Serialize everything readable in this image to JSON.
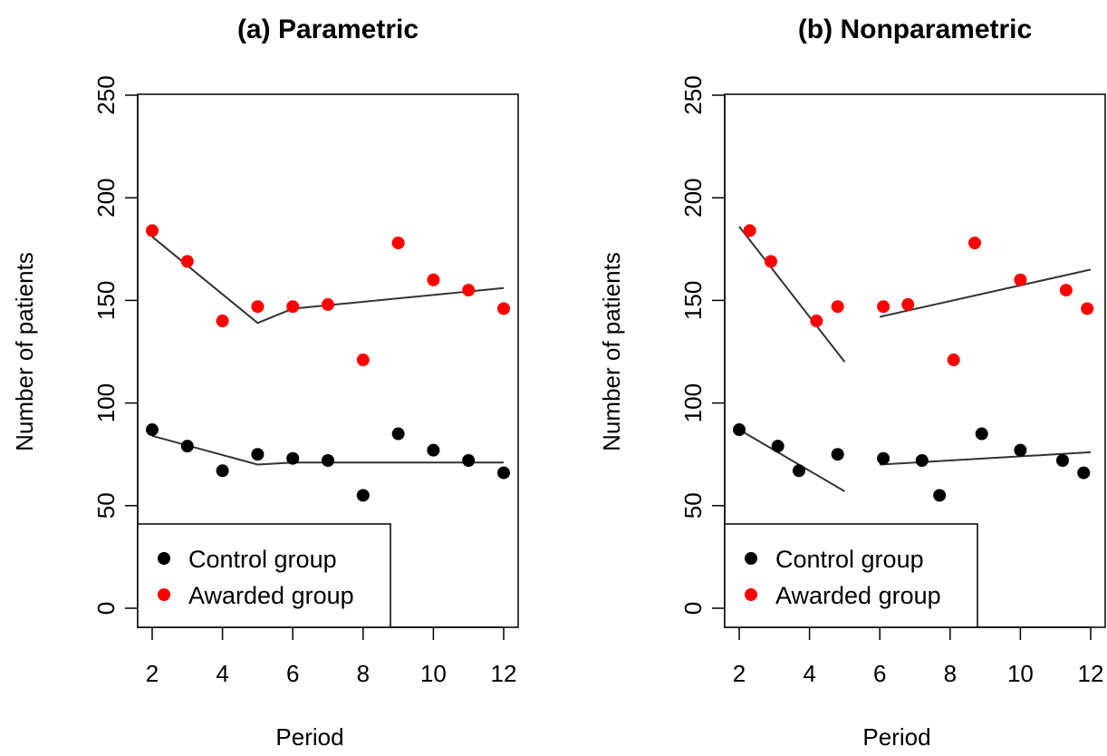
{
  "chart_data": [
    {
      "type": "scatter",
      "title": "(a) Parametric",
      "xlabel": "Period",
      "ylabel": "Number of patients",
      "xlim": [
        1.6,
        12.4
      ],
      "ylim": [
        -10,
        250
      ],
      "x_ticks": [
        2,
        4,
        6,
        8,
        10,
        12
      ],
      "x_tick_labels": [
        "2",
        "4",
        "6",
        "8",
        "10",
        "12"
      ],
      "y_ticks": [
        0,
        50,
        100,
        150,
        200,
        250
      ],
      "y_tick_labels": [
        "0",
        "50",
        "100",
        "150",
        "200",
        "250"
      ],
      "grid": false,
      "legend_position": "bottom-left",
      "legend": [
        "Control group",
        "Awarded group"
      ],
      "series": [
        {
          "name": "Control group",
          "color": "#000000",
          "points": [
            [
              2,
              87
            ],
            [
              3,
              79
            ],
            [
              4,
              67
            ],
            [
              5,
              75
            ],
            [
              6,
              73
            ],
            [
              7,
              72
            ],
            [
              8,
              55
            ],
            [
              9,
              85
            ],
            [
              10,
              77
            ],
            [
              11,
              72
            ],
            [
              12,
              66
            ]
          ]
        },
        {
          "name": "Awarded group",
          "color": "#ff0000",
          "points": [
            [
              2,
              184
            ],
            [
              3,
              169
            ],
            [
              4,
              140
            ],
            [
              5,
              147
            ],
            [
              6,
              147
            ],
            [
              7,
              148
            ],
            [
              8,
              121
            ],
            [
              9,
              178
            ],
            [
              10,
              160
            ],
            [
              11,
              155
            ],
            [
              12,
              146
            ]
          ]
        }
      ],
      "fit_lines": [
        {
          "series": "Control group",
          "points": [
            [
              2,
              84
            ],
            [
              5,
              70
            ],
            [
              6,
              71
            ],
            [
              12,
              71
            ]
          ]
        },
        {
          "series": "Awarded group",
          "points": [
            [
              2,
              181
            ],
            [
              5,
              139
            ],
            [
              6,
              146
            ],
            [
              12,
              156
            ]
          ]
        }
      ]
    },
    {
      "type": "scatter",
      "title": "(b) Nonparametric",
      "xlabel": "Period",
      "ylabel": "Number of patients",
      "xlim": [
        1.6,
        12.4
      ],
      "ylim": [
        -10,
        250
      ],
      "x_ticks": [
        2,
        4,
        6,
        8,
        10,
        12
      ],
      "x_tick_labels": [
        "2",
        "4",
        "6",
        "8",
        "10",
        "12"
      ],
      "y_ticks": [
        0,
        50,
        100,
        150,
        200,
        250
      ],
      "y_tick_labels": [
        "0",
        "50",
        "100",
        "150",
        "200",
        "250"
      ],
      "grid": false,
      "legend_position": "bottom-left",
      "legend": [
        "Control group",
        "Awarded group"
      ],
      "series": [
        {
          "name": "Control group",
          "color": "#000000",
          "points": [
            [
              2,
              87
            ],
            [
              3.1,
              79
            ],
            [
              3.7,
              67
            ],
            [
              4.8,
              75
            ],
            [
              6.1,
              73
            ],
            [
              7.2,
              72
            ],
            [
              7.7,
              55
            ],
            [
              8.9,
              85
            ],
            [
              10,
              77
            ],
            [
              11.2,
              72
            ],
            [
              11.8,
              66
            ]
          ]
        },
        {
          "name": "Awarded group",
          "color": "#ff0000",
          "points": [
            [
              2.3,
              184
            ],
            [
              2.9,
              169
            ],
            [
              4.2,
              140
            ],
            [
              4.8,
              147
            ],
            [
              6.1,
              147
            ],
            [
              6.8,
              148
            ],
            [
              8.1,
              121
            ],
            [
              8.7,
              178
            ],
            [
              10,
              160
            ],
            [
              11.3,
              155
            ],
            [
              11.9,
              146
            ]
          ]
        }
      ],
      "fit_lines": [
        {
          "series": "Control group",
          "points": [
            [
              2,
              87
            ],
            [
              5,
              57
            ]
          ]
        },
        {
          "series": "Control group",
          "points": [
            [
              6,
              70
            ],
            [
              12,
              76
            ]
          ]
        },
        {
          "series": "Awarded group",
          "points": [
            [
              2,
              186
            ],
            [
              5,
              120
            ]
          ]
        },
        {
          "series": "Awarded group",
          "points": [
            [
              6,
              142
            ],
            [
              12,
              165
            ]
          ]
        }
      ]
    }
  ]
}
